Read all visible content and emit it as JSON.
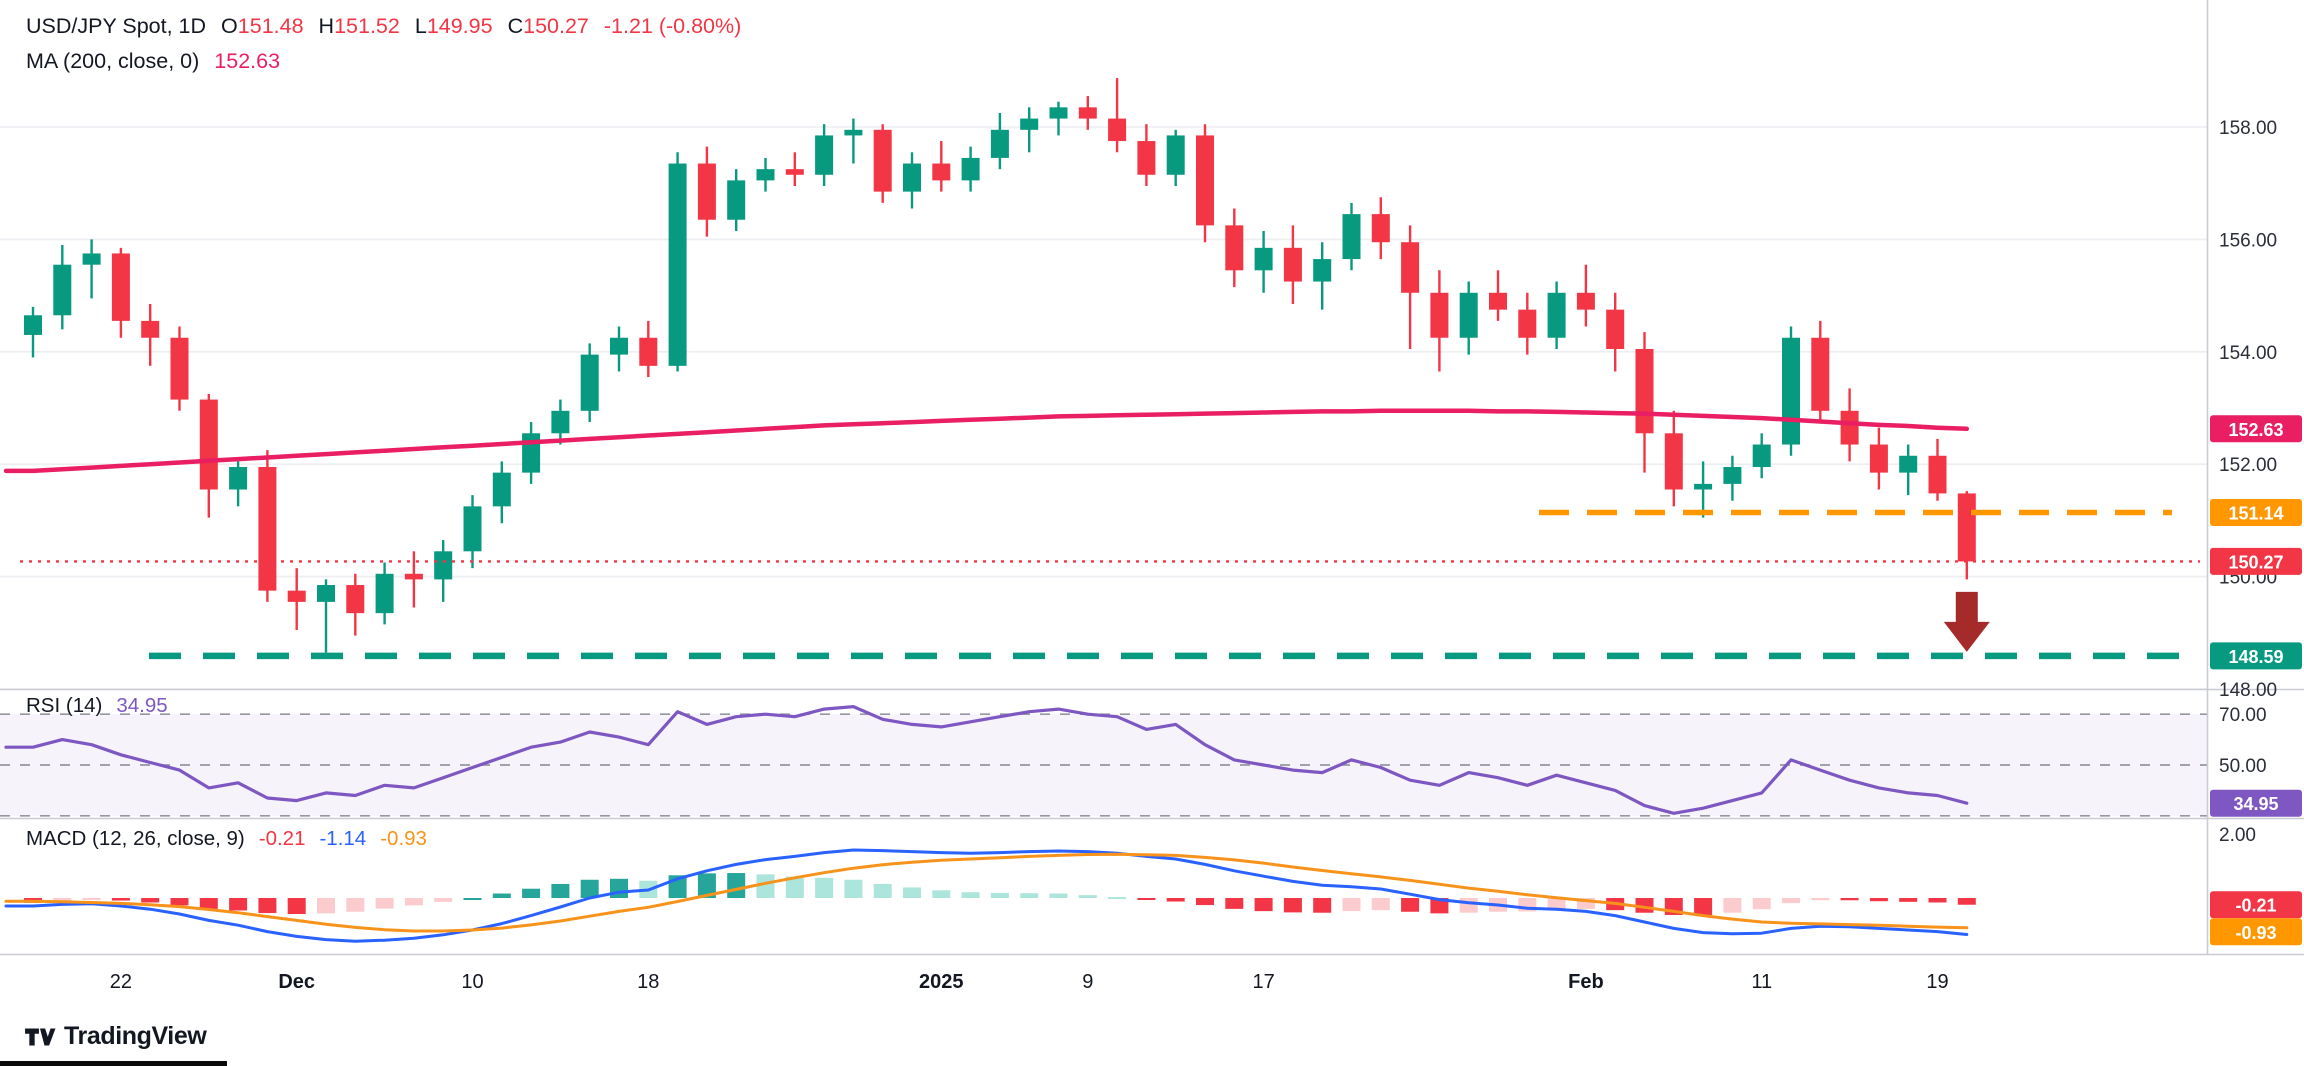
{
  "header": {
    "title": "USD/JPY Spot, 1D",
    "open_label": "O",
    "open": "151.48",
    "high_label": "H",
    "high": "151.52",
    "low_label": "L",
    "low": "149.95",
    "close_label": "C",
    "close": "150.27",
    "change": "-1.21 (-0.80%)",
    "ma_label": "MA (200, close, 0)",
    "ma_value": "152.63"
  },
  "footer": {
    "brand": "TradingView"
  },
  "colors": {
    "up": "#089981",
    "down": "#F23645",
    "ma": "#E91E63",
    "resistance": "#FF9800",
    "support": "#089981",
    "last_price": "#F23645",
    "rsi": "#7E57C2",
    "macd_line": "#2962FF",
    "signal_line": "#F7931A",
    "hist_pos": "#26A69A",
    "hist_pos_weak": "#ACE5DC",
    "hist_neg": "#F23645",
    "hist_neg_weak": "#FCCBCD",
    "arrow": "#A52A2A",
    "axis_text": "#2A2E39",
    "grid": "#ECEEF2",
    "separator": "#C9CCD4",
    "level_dash": "#9598A1"
  },
  "chart_data": [
    {
      "type": "candlestick",
      "name": "USD/JPY Spot, 1D",
      "ylim": [
        147.7,
        160.3
      ],
      "grid": "horizontal",
      "legend_position": "top-left",
      "y_ticks": [
        {
          "label": "158.00",
          "value": 158
        },
        {
          "label": "156.00",
          "value": 156
        },
        {
          "label": "154.00",
          "value": 154
        },
        {
          "label": "152.00",
          "value": 152
        },
        {
          "label": "150.00",
          "value": 150
        },
        {
          "label": "148.00",
          "value": 148
        }
      ],
      "x_labels": [
        {
          "index": 3,
          "text": "22",
          "bold": false
        },
        {
          "index": 9,
          "text": "Dec",
          "bold": true
        },
        {
          "index": 15,
          "text": "10",
          "bold": false
        },
        {
          "index": 21,
          "text": "18",
          "bold": false
        },
        {
          "index": 31,
          "text": "2025",
          "bold": true
        },
        {
          "index": 36,
          "text": "9",
          "bold": false
        },
        {
          "index": 42,
          "text": "17",
          "bold": false
        },
        {
          "index": 53,
          "text": "Feb",
          "bold": true
        },
        {
          "index": 59,
          "text": "11",
          "bold": false
        },
        {
          "index": 65,
          "text": "19",
          "bold": false
        }
      ],
      "dates": [
        "2024-11-19",
        "2024-11-20",
        "2024-11-21",
        "2024-11-22",
        "2024-11-25",
        "2024-11-26",
        "2024-11-27",
        "2024-11-28",
        "2024-11-29",
        "2024-12-02",
        "2024-12-03",
        "2024-12-04",
        "2024-12-05",
        "2024-12-06",
        "2024-12-09",
        "2024-12-10",
        "2024-12-11",
        "2024-12-12",
        "2024-12-13",
        "2024-12-16",
        "2024-12-17",
        "2024-12-18",
        "2024-12-19",
        "2024-12-20",
        "2024-12-23",
        "2024-12-24",
        "2024-12-25",
        "2024-12-26",
        "2024-12-27",
        "2024-12-30",
        "2024-12-31",
        "2025-01-02",
        "2025-01-03",
        "2025-01-06",
        "2025-01-07",
        "2025-01-08",
        "2025-01-09",
        "2025-01-10",
        "2025-01-13",
        "2025-01-14",
        "2025-01-15",
        "2025-01-16",
        "2025-01-17",
        "2025-01-20",
        "2025-01-21",
        "2025-01-22",
        "2025-01-23",
        "2025-01-24",
        "2025-01-27",
        "2025-01-28",
        "2025-01-29",
        "2025-01-30",
        "2025-01-31",
        "2025-02-03",
        "2025-02-04",
        "2025-02-05",
        "2025-02-06",
        "2025-02-07",
        "2025-02-10",
        "2025-02-11",
        "2025-02-12",
        "2025-02-13",
        "2025-02-14",
        "2025-02-17",
        "2025-02-18",
        "2025-02-19",
        "2025-02-20"
      ],
      "open": [
        154.3,
        154.65,
        155.55,
        155.75,
        154.55,
        154.25,
        153.15,
        151.55,
        151.95,
        149.75,
        149.55,
        149.85,
        149.35,
        150.05,
        149.95,
        150.45,
        151.25,
        151.85,
        152.55,
        152.95,
        153.95,
        154.25,
        153.75,
        157.35,
        156.35,
        157.05,
        157.25,
        157.15,
        157.85,
        157.95,
        156.85,
        157.35,
        157.05,
        157.45,
        157.95,
        158.15,
        158.35,
        158.15,
        157.75,
        157.15,
        157.85,
        156.25,
        155.45,
        155.85,
        155.25,
        155.65,
        156.45,
        155.95,
        155.05,
        154.25,
        155.05,
        154.75,
        154.25,
        155.05,
        154.75,
        154.05,
        152.55,
        151.55,
        151.65,
        151.95,
        152.35,
        154.25,
        152.95,
        152.35,
        151.85,
        152.15,
        151.48
      ],
      "high": [
        154.8,
        155.9,
        156.0,
        155.85,
        154.85,
        154.45,
        153.25,
        152.05,
        152.25,
        150.15,
        149.95,
        150.05,
        150.25,
        150.45,
        150.65,
        151.45,
        152.05,
        152.75,
        153.15,
        154.15,
        154.45,
        154.55,
        157.55,
        157.65,
        157.25,
        157.45,
        157.55,
        158.05,
        158.15,
        158.05,
        157.55,
        157.75,
        157.65,
        158.25,
        158.35,
        158.45,
        158.55,
        158.87,
        158.05,
        157.95,
        158.05,
        156.55,
        156.15,
        156.25,
        155.95,
        156.65,
        156.75,
        156.25,
        155.45,
        155.25,
        155.45,
        155.05,
        155.25,
        155.55,
        155.05,
        154.35,
        152.95,
        152.05,
        152.15,
        152.55,
        154.45,
        154.55,
        153.35,
        152.65,
        152.35,
        152.45,
        151.52
      ],
      "low": [
        153.9,
        154.4,
        154.95,
        154.25,
        153.75,
        152.95,
        151.05,
        151.25,
        149.55,
        149.05,
        148.65,
        148.95,
        149.15,
        149.45,
        149.55,
        150.15,
        150.95,
        151.65,
        152.35,
        152.75,
        153.65,
        153.55,
        153.65,
        156.05,
        156.15,
        156.85,
        156.95,
        156.95,
        157.35,
        156.65,
        156.55,
        156.85,
        156.85,
        157.25,
        157.55,
        157.85,
        157.95,
        157.55,
        156.95,
        156.95,
        155.95,
        155.15,
        155.05,
        154.85,
        154.75,
        155.45,
        155.65,
        154.05,
        153.65,
        153.95,
        154.55,
        153.95,
        154.05,
        154.45,
        153.65,
        151.85,
        151.25,
        151.05,
        151.35,
        151.75,
        152.15,
        152.75,
        152.05,
        151.55,
        151.45,
        151.35,
        149.95
      ],
      "close": [
        154.65,
        155.55,
        155.75,
        154.55,
        154.25,
        153.15,
        151.55,
        151.95,
        149.75,
        149.55,
        149.85,
        149.35,
        150.05,
        149.95,
        150.45,
        151.25,
        151.85,
        152.55,
        152.95,
        153.95,
        154.25,
        153.75,
        157.35,
        156.35,
        157.05,
        157.25,
        157.15,
        157.85,
        157.95,
        156.85,
        157.35,
        157.05,
        157.45,
        157.95,
        158.15,
        158.35,
        158.15,
        157.75,
        157.15,
        157.85,
        156.25,
        155.45,
        155.85,
        155.25,
        155.65,
        156.45,
        155.95,
        155.05,
        154.25,
        155.05,
        154.75,
        154.25,
        155.05,
        154.75,
        154.05,
        152.55,
        151.55,
        151.65,
        151.95,
        152.35,
        154.25,
        152.95,
        152.35,
        151.85,
        152.15,
        151.48,
        150.27
      ],
      "ma200": [
        151.88,
        151.91,
        151.94,
        151.97,
        152.0,
        152.03,
        152.06,
        152.09,
        152.12,
        152.15,
        152.18,
        152.21,
        152.24,
        152.27,
        152.3,
        152.33,
        152.36,
        152.39,
        152.42,
        152.45,
        152.48,
        152.51,
        152.54,
        152.57,
        152.6,
        152.63,
        152.66,
        152.69,
        152.71,
        152.73,
        152.75,
        152.77,
        152.79,
        152.81,
        152.83,
        152.85,
        152.86,
        152.87,
        152.88,
        152.89,
        152.9,
        152.91,
        152.92,
        152.93,
        152.94,
        152.94,
        152.95,
        152.95,
        152.95,
        152.95,
        152.94,
        152.94,
        152.93,
        152.92,
        152.91,
        152.9,
        152.88,
        152.86,
        152.84,
        152.82,
        152.79,
        152.76,
        152.73,
        152.7,
        152.68,
        152.65,
        152.63
      ],
      "levels": [
        {
          "name": "ma-200",
          "label": "152.63",
          "value": 152.63,
          "color": "#E91E63",
          "line": "none"
        },
        {
          "name": "resistance",
          "label": "151.14",
          "value": 151.14,
          "color": "#FF9800",
          "line": "dashed"
        },
        {
          "name": "last-price",
          "label": "150.27",
          "value": 150.27,
          "color": "#F23645",
          "line": "dotted"
        },
        {
          "name": "support",
          "label": "148.59",
          "value": 148.59,
          "color": "#089981",
          "line": "dashed"
        }
      ],
      "annotations": [
        {
          "type": "arrow-down",
          "index": 66,
          "color": "#A52A2A"
        }
      ]
    },
    {
      "type": "line",
      "name": "RSI (14)",
      "current": "34.95",
      "levels": [
        70,
        50,
        30
      ],
      "y_tick_labels": [
        {
          "label": "70.00",
          "value": 70
        },
        {
          "label": "50.00",
          "value": 50
        }
      ],
      "badge": {
        "label": "34.95",
        "value": 34.95,
        "color": "#7E57C2"
      },
      "values": [
        57,
        60,
        58,
        54,
        51,
        48,
        41,
        43,
        37,
        36,
        39,
        38,
        42,
        41,
        45,
        49,
        53,
        57,
        59,
        63,
        61,
        58,
        71,
        66,
        69,
        70,
        69,
        72,
        73,
        68,
        66,
        65,
        67,
        69,
        71,
        72,
        70,
        69,
        64,
        66,
        58,
        52,
        50,
        48,
        47,
        52,
        49,
        44,
        42,
        47,
        45,
        42,
        46,
        43,
        40,
        34,
        31,
        33,
        36,
        39,
        52,
        48,
        44,
        41,
        39,
        38,
        34.95
      ]
    },
    {
      "type": "macd",
      "name": "MACD (12, 26, close, 9)",
      "hist_current": "-0.21",
      "macd_current": "-1.14",
      "signal_current": "-0.93",
      "y_tick_labels": [
        {
          "label": "2.00",
          "value": 2
        }
      ],
      "badges": [
        {
          "label": "-0.21",
          "value": -0.21,
          "color": "#F23645"
        },
        {
          "label": "-0.93",
          "value": -0.93,
          "color": "#FF9800"
        }
      ],
      "macd": [
        -0.25,
        -0.2,
        -0.18,
        -0.25,
        -0.35,
        -0.5,
        -0.7,
        -0.85,
        -1.05,
        -1.2,
        -1.3,
        -1.35,
        -1.32,
        -1.26,
        -1.15,
        -1.0,
        -0.8,
        -0.55,
        -0.28,
        0.0,
        0.18,
        0.25,
        0.6,
        0.85,
        1.05,
        1.2,
        1.3,
        1.42,
        1.5,
        1.48,
        1.45,
        1.42,
        1.4,
        1.42,
        1.45,
        1.47,
        1.45,
        1.4,
        1.3,
        1.22,
        1.05,
        0.85,
        0.68,
        0.52,
        0.4,
        0.35,
        0.28,
        0.12,
        -0.05,
        -0.15,
        -0.22,
        -0.32,
        -0.35,
        -0.42,
        -0.55,
        -0.75,
        -0.95,
        -1.08,
        -1.12,
        -1.1,
        -0.95,
        -0.88,
        -0.9,
        -0.95,
        -1.0,
        -1.05,
        -1.14
      ],
      "signal": [
        -0.1,
        -0.12,
        -0.14,
        -0.17,
        -0.21,
        -0.27,
        -0.36,
        -0.46,
        -0.58,
        -0.7,
        -0.82,
        -0.92,
        -0.99,
        -1.03,
        -1.03,
        -1.0,
        -0.94,
        -0.84,
        -0.72,
        -0.57,
        -0.42,
        -0.29,
        -0.11,
        0.08,
        0.27,
        0.46,
        0.63,
        0.79,
        0.93,
        1.04,
        1.12,
        1.18,
        1.22,
        1.26,
        1.3,
        1.33,
        1.36,
        1.37,
        1.35,
        1.33,
        1.27,
        1.19,
        1.09,
        0.97,
        0.86,
        0.76,
        0.66,
        0.55,
        0.43,
        0.31,
        0.21,
        0.1,
        0.01,
        -0.08,
        -0.17,
        -0.29,
        -0.42,
        -0.55,
        -0.66,
        -0.75,
        -0.79,
        -0.81,
        -0.83,
        -0.85,
        -0.88,
        -0.91,
        -0.93
      ]
    }
  ]
}
